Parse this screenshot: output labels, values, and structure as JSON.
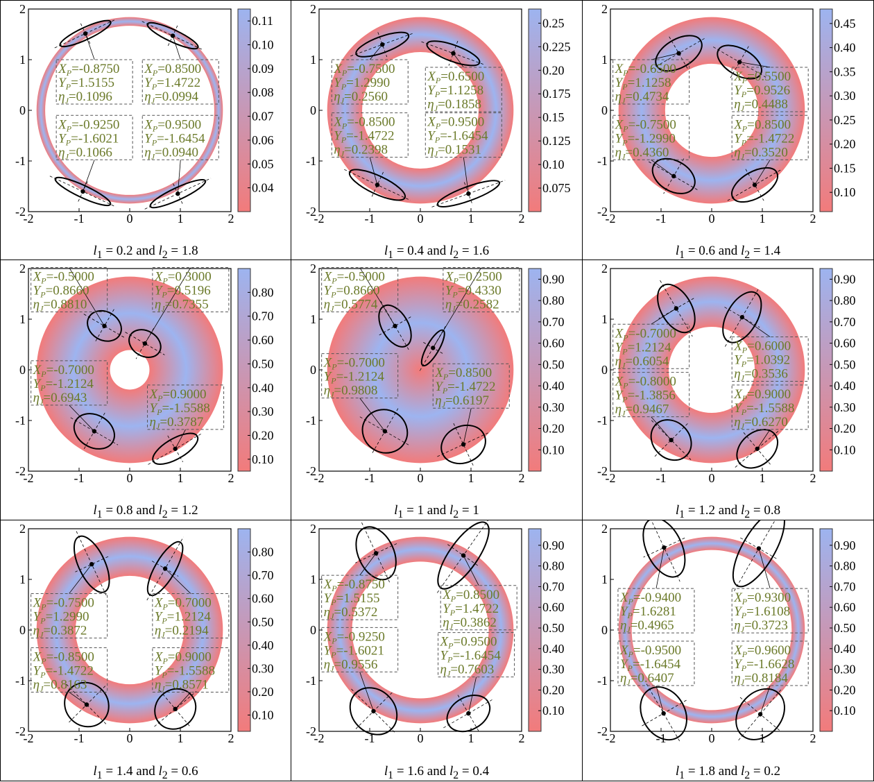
{
  "colors": {
    "low": "#f27b7b",
    "high": "#9db4f0",
    "annotation_text": "#6b7a2a",
    "ellipse": "#000000"
  },
  "chart_data": [
    {
      "type": "heatmap",
      "l1": "0.2",
      "l2": "1.8",
      "caption": "and",
      "xlim": [
        -2,
        2
      ],
      "ylim": [
        -2,
        2
      ],
      "xticks": [
        "-2",
        "-1",
        "0",
        "1",
        "2"
      ],
      "yticks": [
        "-2",
        "-1",
        "0",
        "1",
        "2"
      ],
      "colorbar": {
        "min": 0.03,
        "max": 0.115,
        "ticks": [
          "0.04",
          "0.05",
          "0.06",
          "0.07",
          "0.08",
          "0.09",
          "0.10",
          "0.11"
        ]
      },
      "points": [
        {
          "X": "-0.8750",
          "Y": "1.5155",
          "eta": "0.1096"
        },
        {
          "X": "0.8500",
          "Y": "1.4722",
          "eta": "0.0994"
        },
        {
          "X": "-0.9250",
          "Y": "-1.6021",
          "eta": "0.1066"
        },
        {
          "X": "0.9500",
          "Y": "-1.6454",
          "eta": "0.0940"
        }
      ]
    },
    {
      "type": "heatmap",
      "l1": "0.4",
      "l2": "1.6",
      "caption": "and",
      "xlim": [
        -2,
        2
      ],
      "ylim": [
        -2,
        2
      ],
      "xticks": [
        "-2",
        "-1",
        "0",
        "1",
        "2"
      ],
      "yticks": [
        "-2",
        "-1",
        "0",
        "1",
        "2"
      ],
      "colorbar": {
        "min": 0.05,
        "max": 0.265,
        "ticks": [
          "0.075",
          "0.10",
          "0.125",
          "0.15",
          "0.175",
          "0.20",
          "0.225",
          "0.25"
        ]
      },
      "points": [
        {
          "X": "-0.7500",
          "Y": "1.2990",
          "eta": "0.2560"
        },
        {
          "X": "0.6500",
          "Y": "1.1258",
          "eta": "0.1858"
        },
        {
          "X": "-0.8500",
          "Y": "-1.4722",
          "eta": "0.2398"
        },
        {
          "X": "0.9500",
          "Y": "-1.6454",
          "eta": "0.1531"
        }
      ]
    },
    {
      "type": "heatmap",
      "l1": "0.6",
      "l2": "1.4",
      "caption": "and",
      "xlim": [
        -2,
        2
      ],
      "ylim": [
        -2,
        2
      ],
      "xticks": [
        "-2",
        "-1",
        "0",
        "1",
        "2"
      ],
      "yticks": [
        "-2",
        "-1",
        "0",
        "1",
        "2"
      ],
      "colorbar": {
        "min": 0.06,
        "max": 0.48,
        "ticks": [
          "0.10",
          "0.15",
          "0.20",
          "0.25",
          "0.30",
          "0.35",
          "0.40",
          "0.45"
        ]
      },
      "points": [
        {
          "X": "-0.6500",
          "Y": "1.1258",
          "eta": "0.4734"
        },
        {
          "X": "0.5500",
          "Y": "0.9526",
          "eta": "0.4488"
        },
        {
          "X": "-0.7500",
          "Y": "-1.2990",
          "eta": "0.4360"
        },
        {
          "X": "0.8500",
          "Y": "-1.4722",
          "eta": "0.3520"
        }
      ]
    },
    {
      "type": "heatmap",
      "l1": "0.8",
      "l2": "1.2",
      "caption": "and",
      "xlim": [
        -2,
        2
      ],
      "ylim": [
        -2,
        2
      ],
      "xticks": [
        "-2",
        "-1",
        "0",
        "1",
        "2"
      ],
      "yticks": [
        "-2",
        "-1",
        "0",
        "1",
        "2"
      ],
      "colorbar": {
        "min": 0.05,
        "max": 0.9,
        "ticks": [
          "0.10",
          "0.20",
          "0.30",
          "0.40",
          "0.50",
          "0.60",
          "0.70",
          "0.80"
        ]
      },
      "points": [
        {
          "X": "-0.5000",
          "Y": "0.8660",
          "eta": "0.8810"
        },
        {
          "X": "0.3000",
          "Y": "0.5196",
          "eta": "0.7355"
        },
        {
          "X": "-0.7000",
          "Y": "-1.2124",
          "eta": "0.6943"
        },
        {
          "X": "0.9000",
          "Y": "-1.5588",
          "eta": "0.3787"
        }
      ]
    },
    {
      "type": "heatmap",
      "l1": "1",
      "l2": "1",
      "caption": "and",
      "xlim": [
        -2,
        2
      ],
      "ylim": [
        -2,
        2
      ],
      "xticks": [
        "-2",
        "-1",
        "0",
        "1",
        "2"
      ],
      "yticks": [
        "-2",
        "-1",
        "0",
        "1",
        "2"
      ],
      "colorbar": {
        "min": 0.0,
        "max": 0.95,
        "ticks": [
          "0.10",
          "0.20",
          "0.30",
          "0.40",
          "0.50",
          "0.60",
          "0.70",
          "0.80",
          "0.90"
        ]
      },
      "points": [
        {
          "X": "-0.5000",
          "Y": "0.8660",
          "eta": "0.5774"
        },
        {
          "X": "0.2500",
          "Y": "0.4330",
          "eta": "0.2582"
        },
        {
          "X": "-0.7000",
          "Y": "-1.2124",
          "eta": "0.9808"
        },
        {
          "X": "0.8500",
          "Y": "-1.4722",
          "eta": "0.6197"
        }
      ]
    },
    {
      "type": "heatmap",
      "l1": "1.2",
      "l2": "0.8",
      "caption": "and",
      "xlim": [
        -2,
        2
      ],
      "ylim": [
        -2,
        2
      ],
      "xticks": [
        "-2",
        "-1",
        "0",
        "1",
        "2"
      ],
      "yticks": [
        "-2",
        "-1",
        "0",
        "1",
        "2"
      ],
      "colorbar": {
        "min": 0.0,
        "max": 0.95,
        "ticks": [
          "0.10",
          "0.20",
          "0.30",
          "0.40",
          "0.50",
          "0.60",
          "0.70",
          "0.80",
          "0.90"
        ]
      },
      "points": [
        {
          "X": "-0.7000",
          "Y": "1.2124",
          "eta": "0.6054"
        },
        {
          "X": "0.6000",
          "Y": "1.0392",
          "eta": "0.3536"
        },
        {
          "X": "-0.8000",
          "Y": "-1.3856",
          "eta": "0.9467"
        },
        {
          "X": "0.9000",
          "Y": "-1.5588",
          "eta": "0.6270"
        }
      ]
    },
    {
      "type": "heatmap",
      "l1": "1.4",
      "l2": "0.6",
      "caption": "and",
      "xlim": [
        -2,
        2
      ],
      "ylim": [
        -2,
        2
      ],
      "xticks": [
        "-2",
        "-1",
        "0",
        "1",
        "2"
      ],
      "yticks": [
        "-2",
        "-1",
        "0",
        "1",
        "2"
      ],
      "colorbar": {
        "min": 0.03,
        "max": 0.9,
        "ticks": [
          "0.10",
          "0.20",
          "0.30",
          "0.40",
          "0.50",
          "0.60",
          "0.70",
          "0.80"
        ]
      },
      "points": [
        {
          "X": "-0.7500",
          "Y": "1.2990",
          "eta": "0.3872"
        },
        {
          "X": "0.7000",
          "Y": "1.2124",
          "eta": "0.2194"
        },
        {
          "X": "-0.8500",
          "Y": "-1.4722",
          "eta": "0.8163"
        },
        {
          "X": "0.9000",
          "Y": "-1.5588",
          "eta": "0.8571"
        }
      ]
    },
    {
      "type": "heatmap",
      "l1": "1.6",
      "l2": "0.4",
      "caption": "and",
      "xlim": [
        -2,
        2
      ],
      "ylim": [
        -2,
        2
      ],
      "xticks": [
        "-2",
        "-1",
        "0",
        "1",
        "2"
      ],
      "yticks": [
        "-2",
        "-1",
        "0",
        "1",
        "2"
      ],
      "colorbar": {
        "min": 0.0,
        "max": 0.98,
        "ticks": [
          "0.10",
          "0.20",
          "0.30",
          "0.40",
          "0.50",
          "0.60",
          "0.70",
          "0.80",
          "0.90"
        ]
      },
      "points": [
        {
          "X": "-0.8750",
          "Y": "1.5155",
          "eta": "0.5372"
        },
        {
          "X": "0.8500",
          "Y": "1.4722",
          "eta": "0.3862"
        },
        {
          "X": "-0.9250",
          "Y": "-1.6021",
          "eta": "0.9556"
        },
        {
          "X": "0.9500",
          "Y": "-1.6454",
          "eta": "0.7603"
        }
      ]
    },
    {
      "type": "heatmap",
      "l1": "1.8",
      "l2": "0.2",
      "caption": "and",
      "xlim": [
        -2,
        2
      ],
      "ylim": [
        -2,
        2
      ],
      "xticks": [
        "-2",
        "-1",
        "0",
        "1",
        "2"
      ],
      "yticks": [
        "-2",
        "-1",
        "0",
        "1",
        "2"
      ],
      "colorbar": {
        "min": 0.0,
        "max": 0.98,
        "ticks": [
          "0.10",
          "0.20",
          "0.30",
          "0.40",
          "0.50",
          "0.60",
          "0.70",
          "0.80",
          "0.90"
        ]
      },
      "points": [
        {
          "X": "-0.9400",
          "Y": "1.6281",
          "eta": "0.4965"
        },
        {
          "X": "0.9300",
          "Y": "1.6108",
          "eta": "0.3723"
        },
        {
          "X": "-0.9500",
          "Y": "-1.6454",
          "eta": "0.6407"
        },
        {
          "X": "0.9600",
          "Y": "-1.6628",
          "eta": "0.8184"
        }
      ]
    }
  ]
}
